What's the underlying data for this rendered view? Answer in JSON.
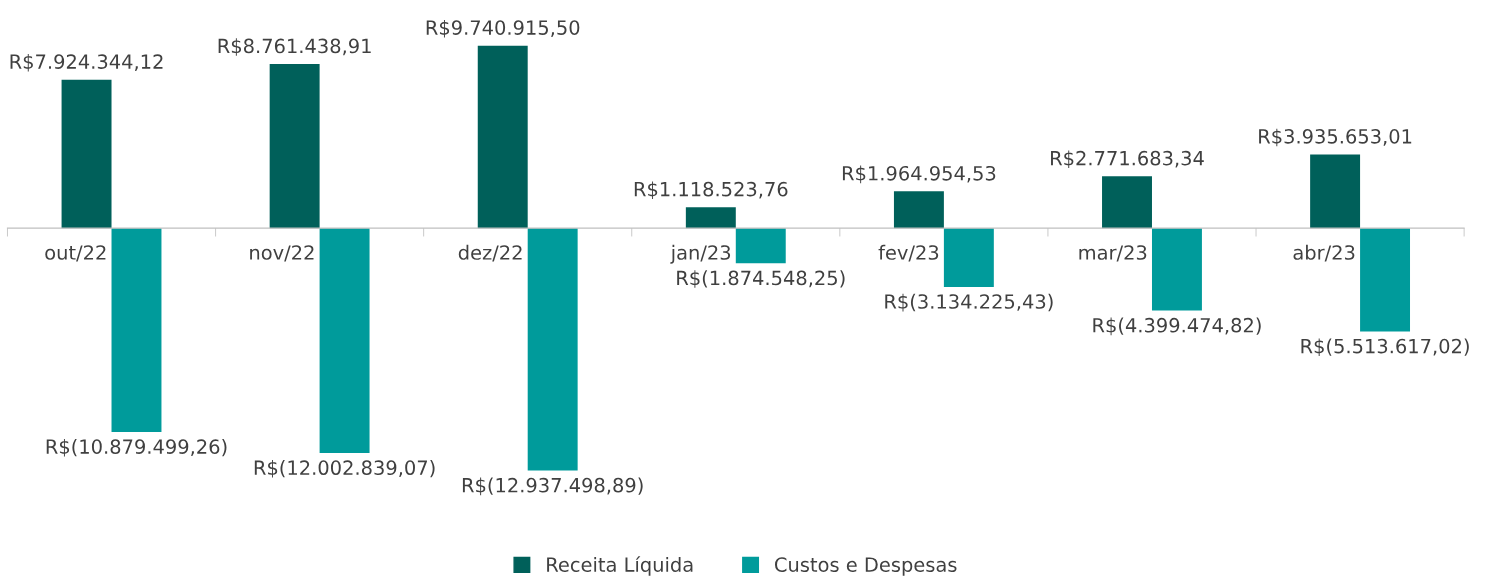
{
  "chart_data": {
    "type": "bar",
    "categories": [
      "out/22",
      "nov/22",
      "dez/22",
      "jan/23",
      "fev/23",
      "mar/23",
      "abr/23"
    ],
    "series": [
      {
        "name": "Receita Líquida",
        "color": "#00605a",
        "values": [
          7924344.12,
          8761438.91,
          9740915.5,
          1118523.76,
          1964954.53,
          2771683.34,
          3935653.01
        ],
        "value_labels": [
          "R$7.924.344,12",
          "R$8.761.438,91",
          "R$9.740.915,50",
          "R$1.118.523,76",
          "R$1.964.954,53",
          "R$2.771.683,34",
          "R$3.935.653,01"
        ]
      },
      {
        "name": "Custos e Despesas",
        "color": "#009b9b",
        "values": [
          -10879499.26,
          -12002839.07,
          -12937498.89,
          -1874548.25,
          -3134225.43,
          -4399474.82,
          -5513617.02
        ],
        "value_labels": [
          "R$(10.879.499,26)",
          "R$(12.002.839,07)",
          "R$(12.937.498,89)",
          "R$(1.874.548,25)",
          "R$(3.134.225,43)",
          "R$(4.399.474,82)",
          "R$(5.513.617,02)"
        ]
      }
    ],
    "tick_labels": "x",
    "grid": false,
    "legend": "bottom"
  }
}
